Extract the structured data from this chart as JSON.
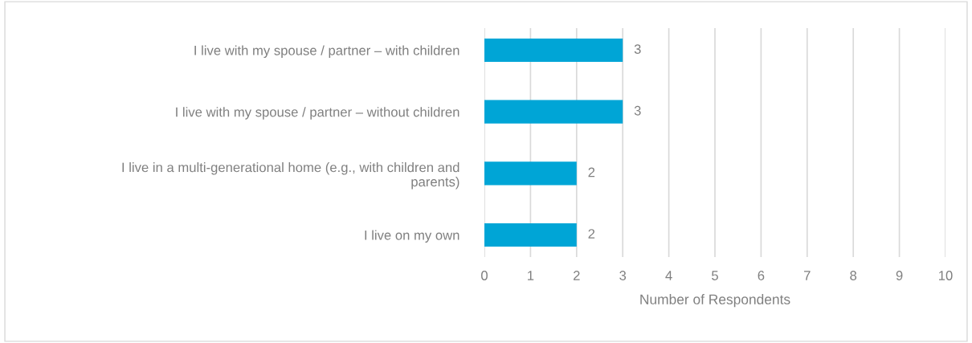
{
  "chart_data": {
    "type": "bar",
    "orientation": "horizontal",
    "categories": [
      "I live with my spouse / partner – with children",
      "I live with my spouse / partner – without children",
      "I live in a multi-generational home (e.g., with children and\nparents)",
      "I live on my own"
    ],
    "values": [
      3,
      3,
      2,
      2
    ],
    "color": "#00a5d6",
    "xlim": [
      0,
      10
    ],
    "xticks": [
      0,
      1,
      2,
      3,
      4,
      5,
      6,
      7,
      8,
      9,
      10
    ],
    "xlabel": "Number of Respondents",
    "grid": "x",
    "data_labels": true,
    "legend": false
  }
}
